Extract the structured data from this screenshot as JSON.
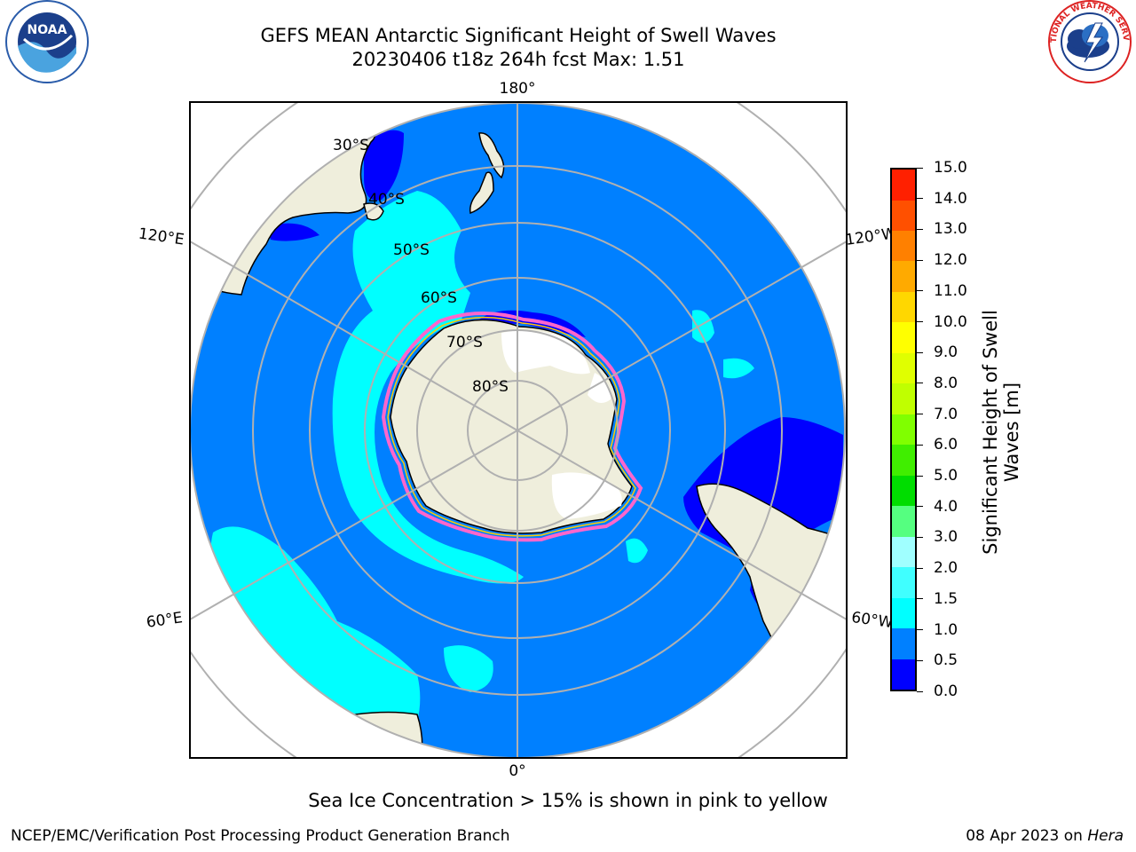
{
  "title": {
    "line1": "GEFS MEAN Antarctic Significant Height of Swell Waves",
    "line2": "20230406 t18z 264h fcst   Max: 1.51"
  },
  "map": {
    "projection": "south-polar-stereographic",
    "meridian_labels": {
      "top": "180°",
      "bottom": "0°",
      "upper_left": "120°E",
      "upper_right": "120°W",
      "lower_left": "60°E",
      "lower_right": "60°W"
    },
    "latitude_labels": [
      "30°S",
      "40°S",
      "50°S",
      "60°S",
      "70°S",
      "80°S"
    ],
    "colors": {
      "ocean": "#0080ff",
      "swell_1_to_1_5": "#00ffff",
      "swell_0_to_0_5": "#0000ff",
      "land": "#efeedc",
      "sea_ice": "#ffffff",
      "grid": "#b0b0b0"
    }
  },
  "colorbar": {
    "title_line1": "Significant Height of Swell",
    "title_line2": "Waves [m]",
    "tick_labels": [
      "0.0",
      "0.5",
      "1.0",
      "1.5",
      "2.0",
      "3.0",
      "4.0",
      "5.0",
      "6.0",
      "7.0",
      "8.0",
      "9.0",
      "10.0",
      "11.0",
      "12.0",
      "13.0",
      "14.0",
      "15.0"
    ],
    "colors": [
      "#0000ff",
      "#0080ff",
      "#00ffff",
      "#40ffff",
      "#a0ffff",
      "#55ff80",
      "#00dd00",
      "#40ee00",
      "#80ff00",
      "#c0ff00",
      "#e0ff00",
      "#ffff00",
      "#ffd700",
      "#ffaa00",
      "#ff8000",
      "#ff5000",
      "#ff2000"
    ]
  },
  "logos": {
    "left": "NOAA",
    "right": "NATIONAL WEATHER SERVICE"
  },
  "note": "Sea Ice Concentration > 15% is shown in pink to yellow",
  "footer": {
    "left": "NCEP/EMC/Verification Post Processing Product Generation Branch",
    "right_prefix": "08 Apr 2023 on ",
    "right_host": "Hera"
  }
}
